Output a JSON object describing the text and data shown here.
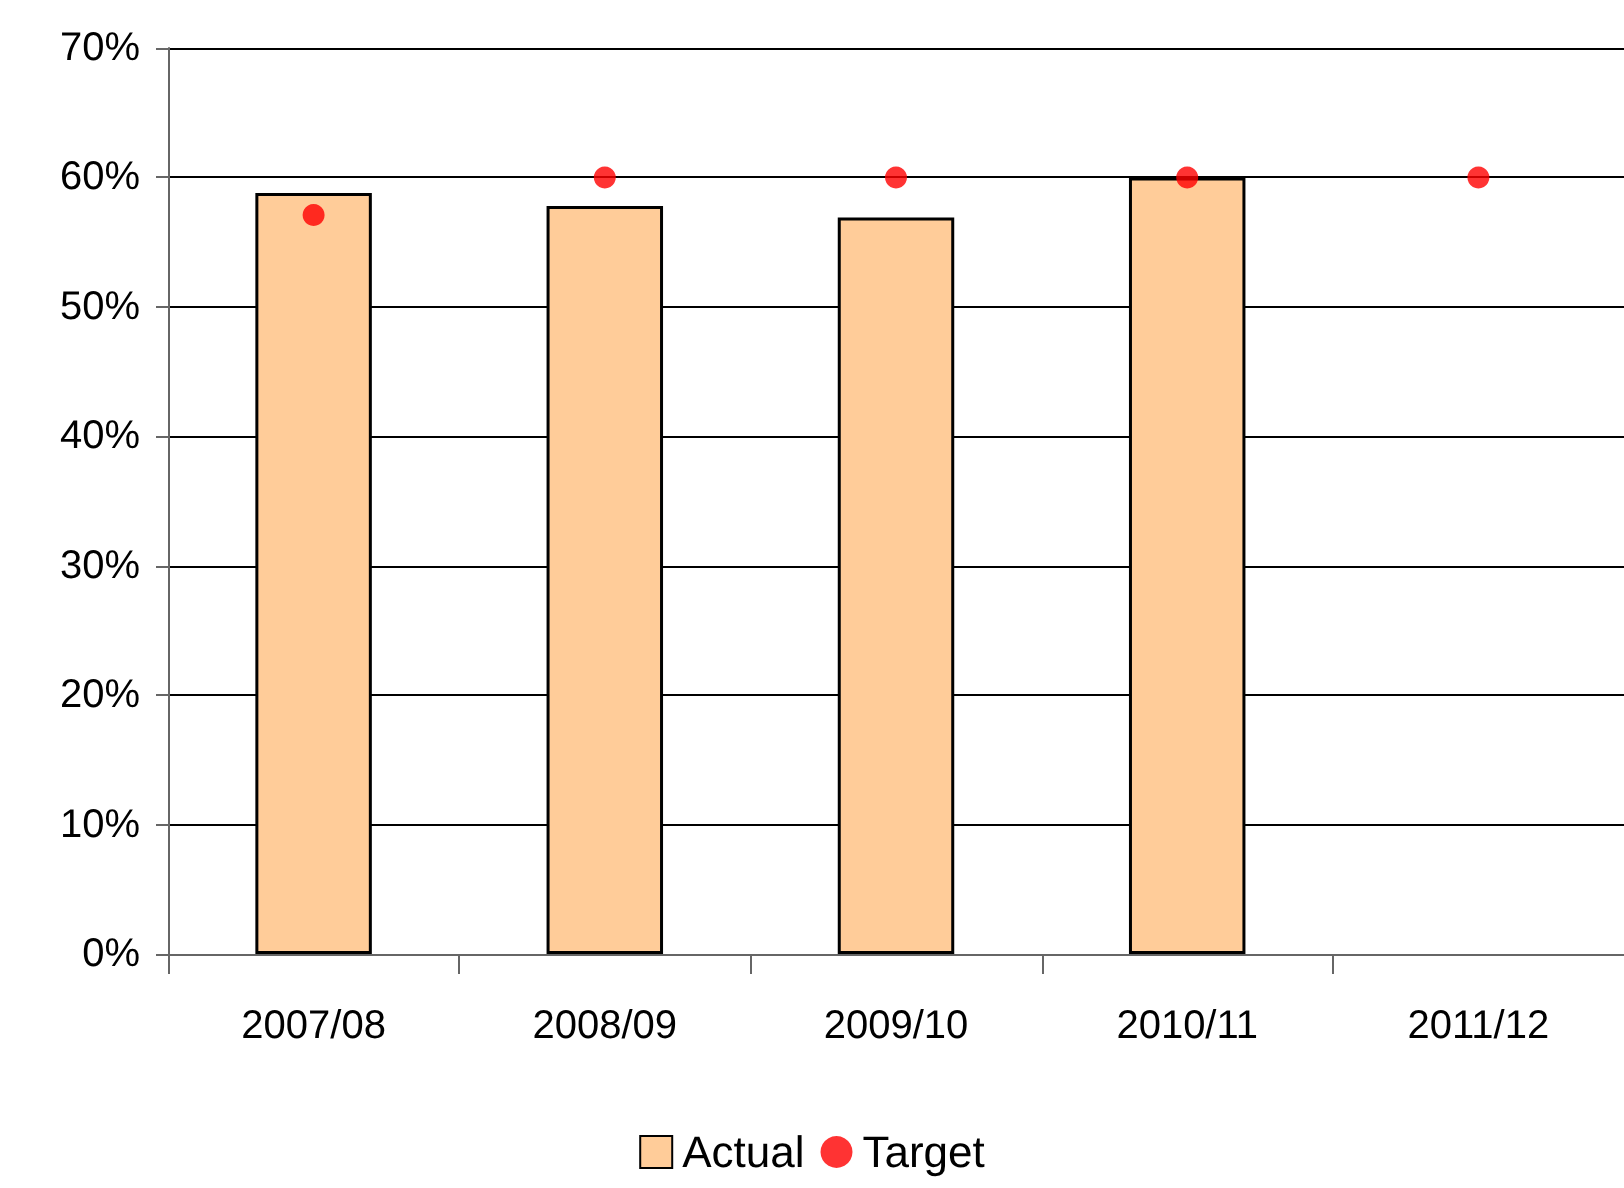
{
  "chart_data": {
    "type": "bar",
    "categories": [
      "2007/08",
      "2008/09",
      "2009/10",
      "2010/11",
      "2011/12"
    ],
    "series": [
      {
        "name": "Actual",
        "color": "#ffcc99",
        "values": [
          58.8,
          57.8,
          56.9,
          60,
          null
        ]
      },
      {
        "name": "Target",
        "type": "scatter",
        "color": "#ff0000",
        "x": [
          "2007/08",
          "2008/09",
          "2009/10",
          "2010/11",
          "2011/12"
        ],
        "values": [
          57.1,
          60,
          60,
          60,
          60
        ]
      }
    ],
    "ylim": [
      0,
      70
    ],
    "yticks": [
      {
        "value": 0,
        "label": "0%"
      },
      {
        "value": 10,
        "label": "10%"
      },
      {
        "value": 20,
        "label": "20%"
      },
      {
        "value": 30,
        "label": "30%"
      },
      {
        "value": 40,
        "label": "40%"
      },
      {
        "value": 50,
        "label": "50%"
      },
      {
        "value": 60,
        "label": "60%"
      },
      {
        "value": 70,
        "label": "70%"
      }
    ],
    "grid": "y",
    "legend": "bottom",
    "marker": "circle"
  }
}
